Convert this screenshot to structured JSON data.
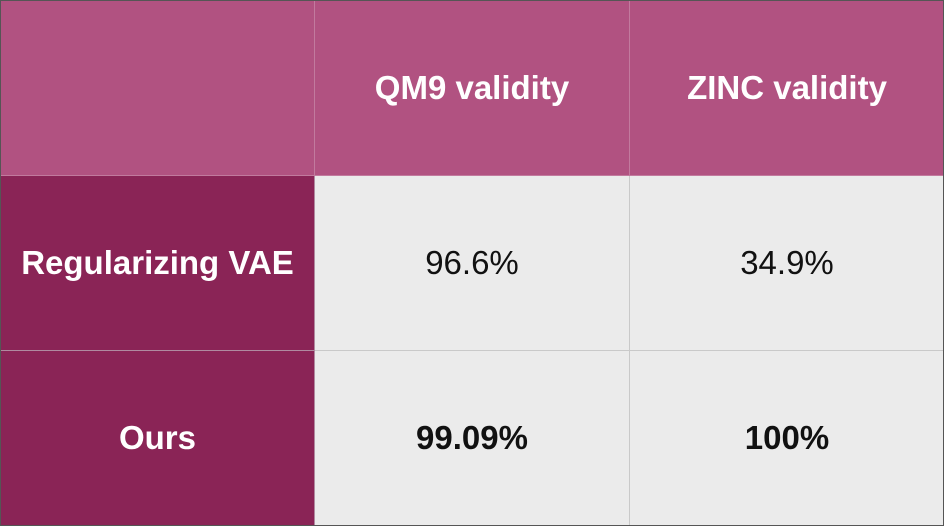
{
  "table": {
    "columns": [
      "QM9 validity",
      "ZINC validity"
    ],
    "rows": [
      {
        "label": "Regularizing VAE",
        "cells": [
          "96.6%",
          "34.9%"
        ]
      },
      {
        "label": "Ours",
        "cells": [
          "99.09%",
          "100%"
        ]
      }
    ]
  }
}
